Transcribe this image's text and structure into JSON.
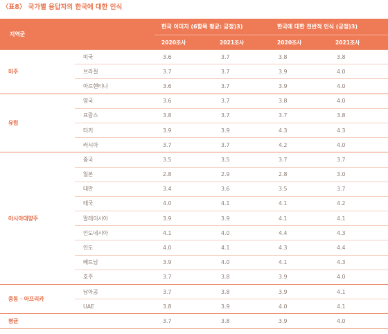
{
  "caption": "〈표8〉 국가별 응답자의 한국에 대한 인식",
  "headers": {
    "region": "지역군",
    "group1": "한국 이미지 (6항목 평균: 긍정)3)",
    "group2": "한국에 대한 전반적 인식 (긍정)3)",
    "year_2020": "2020조사",
    "year_2021": "2021조사"
  },
  "groups": [
    {
      "region": "미주",
      "rows": [
        {
          "country": "미국",
          "img2020": "3.6",
          "img2021": "3.7",
          "gen2020": "3.8",
          "gen2021": "3.8"
        },
        {
          "country": "브라질",
          "img2020": "3.7",
          "img2021": "3.7",
          "gen2020": "3.9",
          "gen2021": "4.0"
        },
        {
          "country": "아르헨티나",
          "img2020": "3.6",
          "img2021": "3.7",
          "gen2020": "3.9",
          "gen2021": "4.0"
        }
      ]
    },
    {
      "region": "유럽",
      "rows": [
        {
          "country": "영국",
          "img2020": "3.6",
          "img2021": "3.7",
          "gen2020": "3.8",
          "gen2021": "4.0"
        },
        {
          "country": "프랑스",
          "img2020": "3.8",
          "img2021": "3.7",
          "gen2020": "3.7",
          "gen2021": "3.8"
        },
        {
          "country": "터키",
          "img2020": "3.9",
          "img2021": "3.9",
          "gen2020": "4.3",
          "gen2021": "4.3"
        },
        {
          "country": "러시아",
          "img2020": "3.7",
          "img2021": "3.7",
          "gen2020": "4.2",
          "gen2021": "4.0"
        }
      ]
    },
    {
      "region": "아시아대양주",
      "rows": [
        {
          "country": "중국",
          "img2020": "3.5",
          "img2021": "3.5",
          "gen2020": "3.7",
          "gen2021": "3.7"
        },
        {
          "country": "일본",
          "img2020": "2.8",
          "img2021": "2.9",
          "gen2020": "2.8",
          "gen2021": "3.0"
        },
        {
          "country": "대만",
          "img2020": "3.4",
          "img2021": "3.6",
          "gen2020": "3.5",
          "gen2021": "3.7"
        },
        {
          "country": "태국",
          "img2020": "4.0",
          "img2021": "4.1",
          "gen2020": "4.1",
          "gen2021": "4.2"
        },
        {
          "country": "말레이시아",
          "img2020": "3.9",
          "img2021": "3.9",
          "gen2020": "4.1",
          "gen2021": "4.1"
        },
        {
          "country": "인도네시아",
          "img2020": "4.1",
          "img2021": "4.0",
          "gen2020": "4.4",
          "gen2021": "4.3"
        },
        {
          "country": "인도",
          "img2020": "4.0",
          "img2021": "4.1",
          "gen2020": "4.3",
          "gen2021": "4.4"
        },
        {
          "country": "베트남",
          "img2020": "3.9",
          "img2021": "4.0",
          "gen2020": "4.1",
          "gen2021": "4.3"
        },
        {
          "country": "호주",
          "img2020": "3.7",
          "img2021": "3.8",
          "gen2020": "3.9",
          "gen2021": "4.0"
        }
      ]
    },
    {
      "region": "중동 · 아프리카",
      "rows": [
        {
          "country": "남아공",
          "img2020": "3.7",
          "img2021": "3.8",
          "gen2020": "3.9",
          "gen2021": "4.1"
        },
        {
          "country": "UAE",
          "img2020": "3.8",
          "img2021": "3.9",
          "gen2020": "4.0",
          "gen2021": "4.1"
        }
      ]
    },
    {
      "region": "평균",
      "rows": [
        {
          "country": "",
          "img2020": "3.7",
          "img2021": "3.8",
          "gen2020": "3.9",
          "gen2021": "4.0"
        }
      ]
    }
  ]
}
